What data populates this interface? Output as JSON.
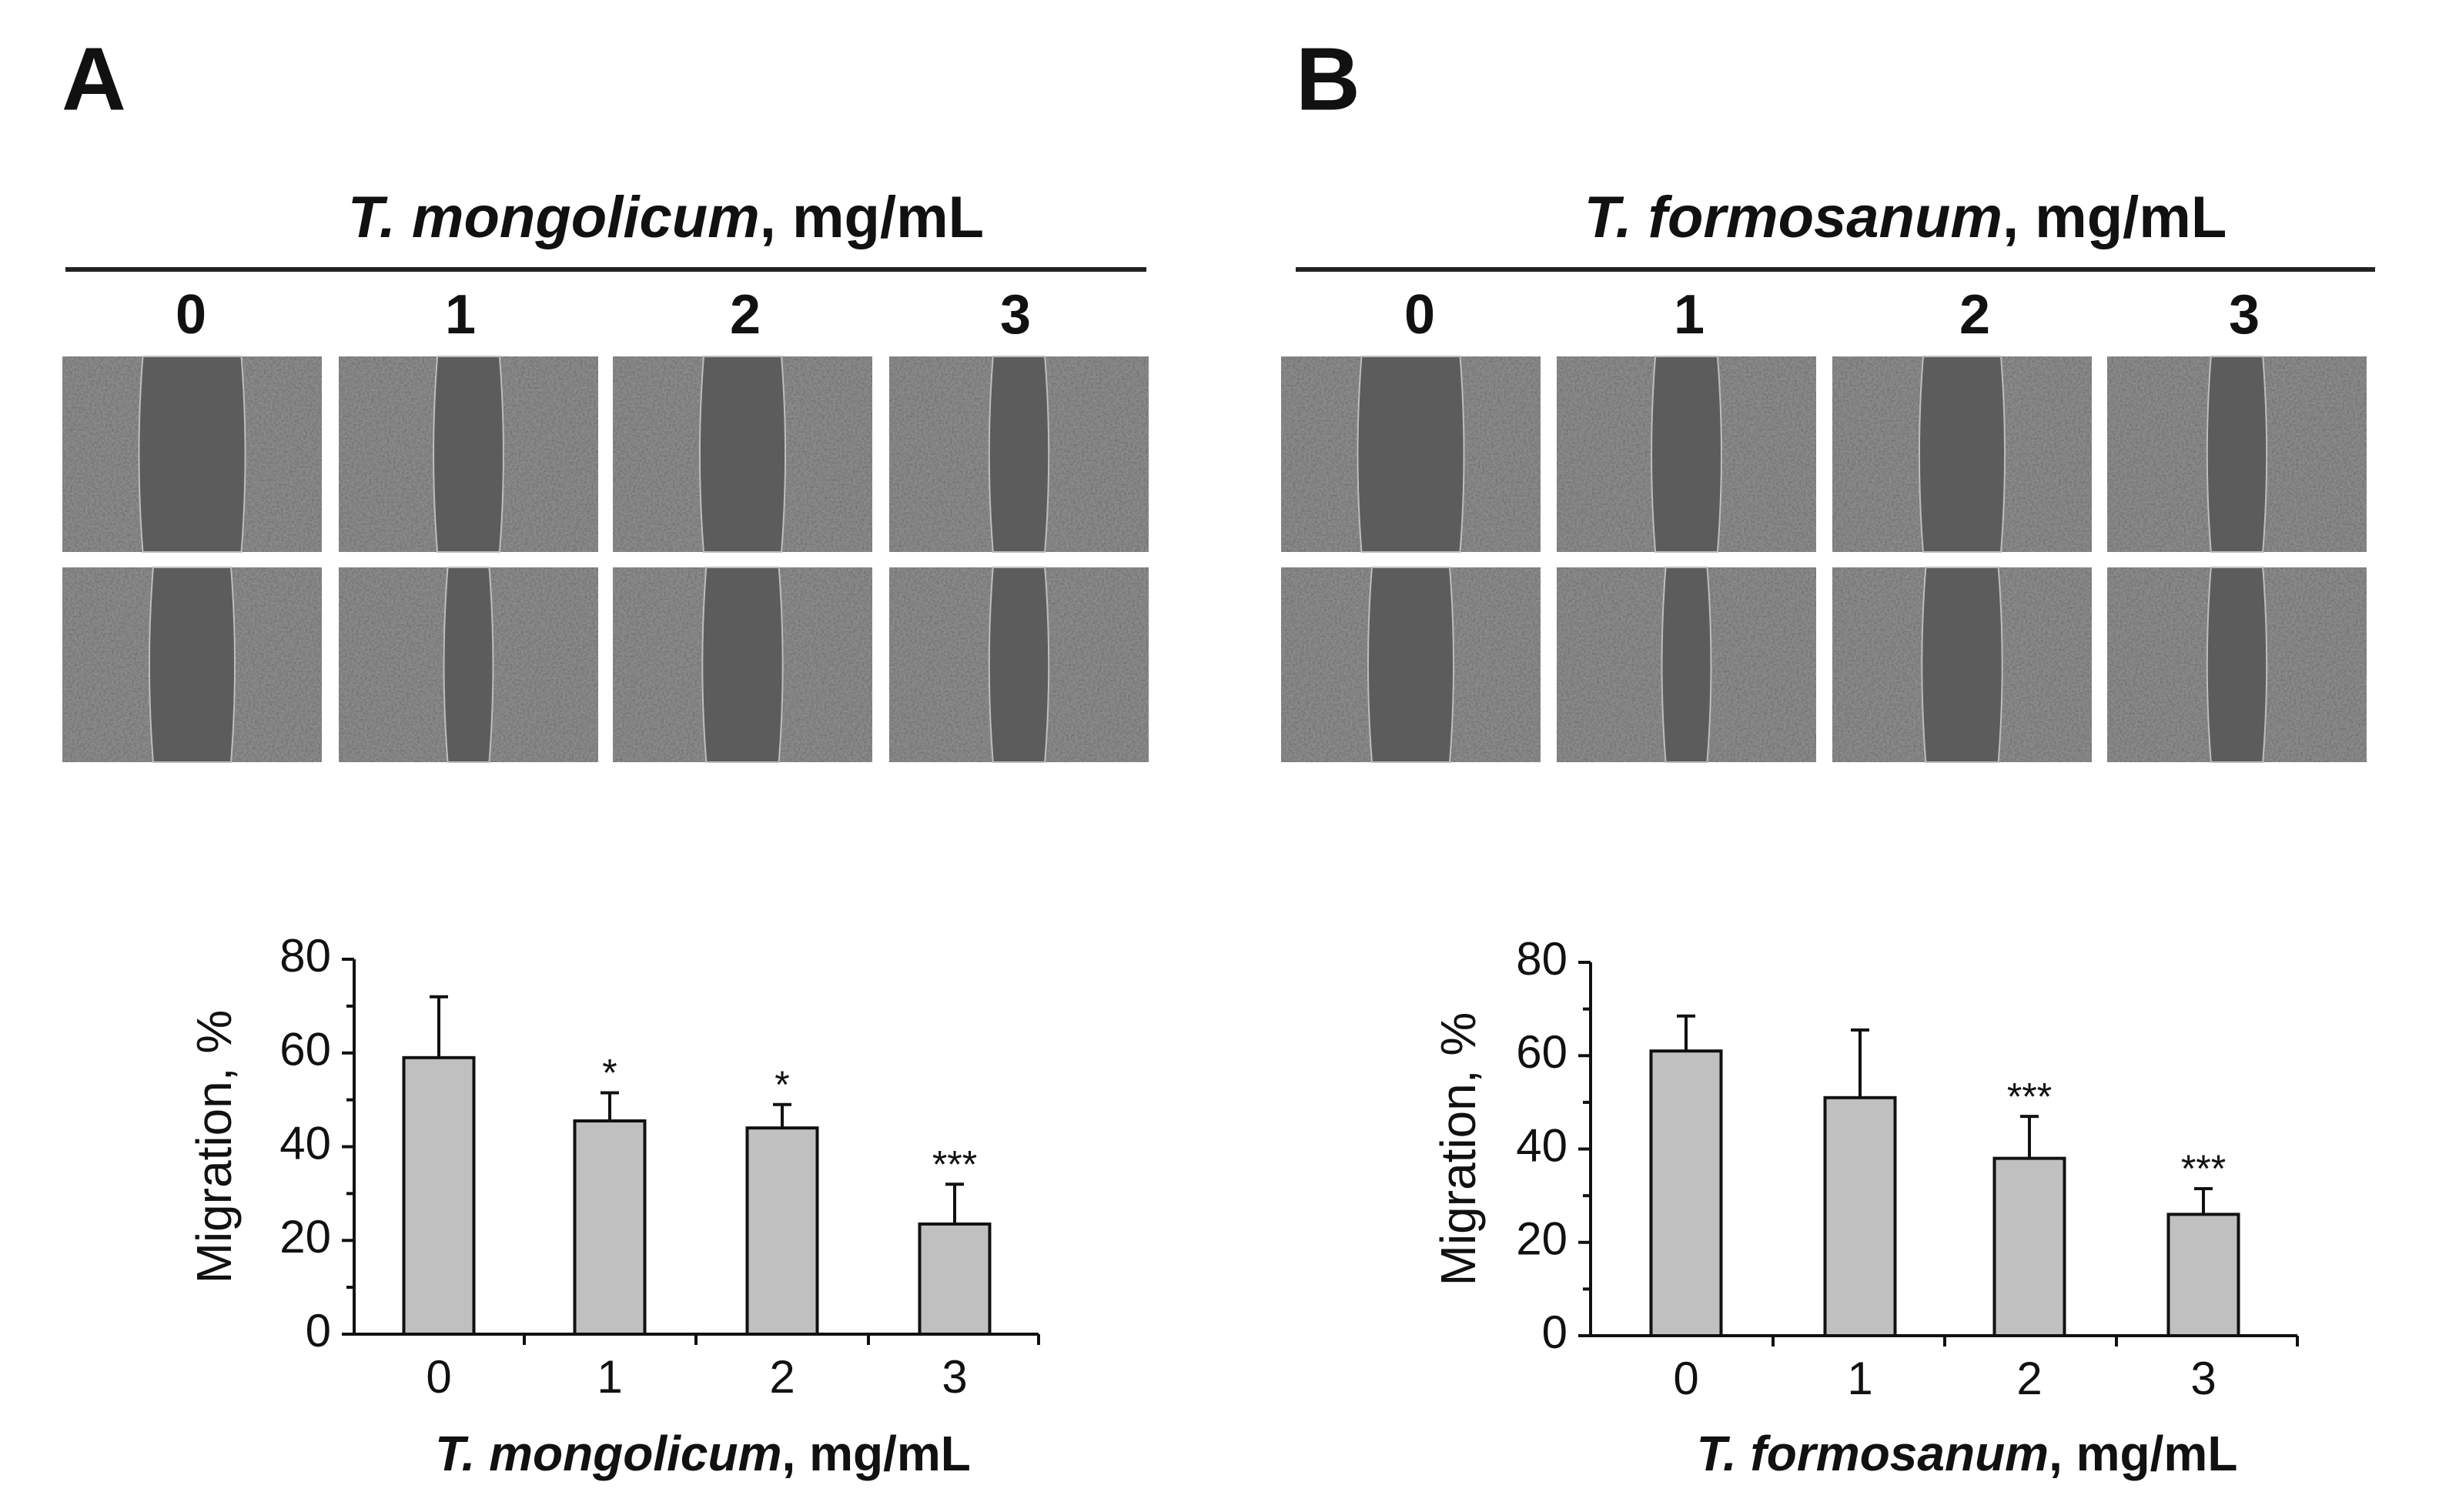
{
  "panels": [
    {
      "label": "A",
      "header": {
        "species": "T. mongolicum",
        "unit": ", mg/mL"
      },
      "columns": [
        "0",
        "1",
        "2",
        "3"
      ]
    },
    {
      "label": "B",
      "header": {
        "species": "T. formosanum",
        "unit": ", mg/mL"
      },
      "columns": [
        "0",
        "1",
        "2",
        "3"
      ]
    }
  ],
  "chart_data": [
    {
      "type": "bar",
      "categories": [
        "0",
        "1",
        "2",
        "3"
      ],
      "values": [
        59,
        45.5,
        44,
        23.5
      ],
      "errors": [
        13,
        6,
        5,
        8.5
      ],
      "annotations": [
        null,
        "*",
        "*",
        "***"
      ],
      "color": "#c0c0c0",
      "ylabel": "Migration, %",
      "xlabel": {
        "species": "T. mongolicum",
        "unit": ", mg/mL"
      },
      "ylim": [
        0,
        80
      ],
      "yticks": [
        0,
        20,
        40,
        60,
        80
      ],
      "yminorticks": [
        10,
        30,
        50,
        70
      ]
    },
    {
      "type": "bar",
      "categories": [
        "0",
        "1",
        "2",
        "3"
      ],
      "values": [
        61,
        51,
        38,
        26
      ],
      "errors": [
        7.5,
        14.5,
        9,
        5.5
      ],
      "annotations": [
        null,
        null,
        "***",
        "***"
      ],
      "color": "#c0c0c0",
      "ylabel": "Migration, %",
      "xlabel": {
        "species": "T. formosanum",
        "unit": ", mg/mL"
      },
      "ylim": [
        0,
        80
      ],
      "yticks": [
        0,
        20,
        40,
        60,
        80
      ],
      "yminorticks": [
        10,
        30,
        50,
        70
      ]
    }
  ]
}
